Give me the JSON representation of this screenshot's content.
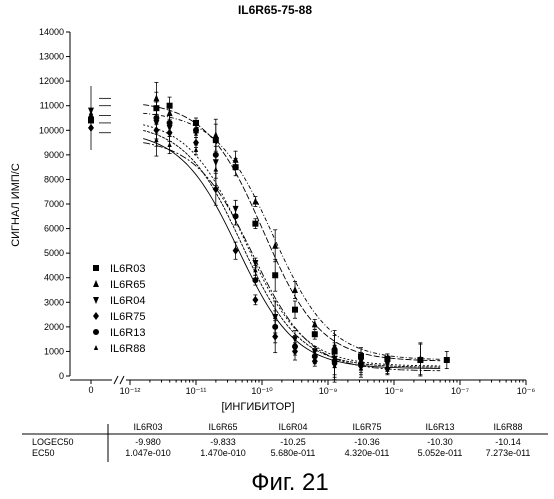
{
  "chart_data": {
    "type": "scatter",
    "title": "IL6R65-75-88",
    "xlabel": "[ИНГИБИТОР]",
    "ylabel": "СИГНАЛ ИМП/С",
    "x_scale": "log",
    "xlim_log10": [
      -12,
      -6
    ],
    "ylim": [
      0,
      14000
    ],
    "y_ticks": [
      "0",
      "1000",
      "2000",
      "3000",
      "4000",
      "5000",
      "6000",
      "7000",
      "8000",
      "9000",
      "10000",
      "11000",
      "12000",
      "13000",
      "14000"
    ],
    "x_zero_label": "0",
    "x_ticks": [
      {
        "exp": -12,
        "label": "10⁻¹²"
      },
      {
        "exp": -11,
        "label": "10⁻¹¹"
      },
      {
        "exp": -10,
        "label": "10⁻¹⁰"
      },
      {
        "exp": -9,
        "label": "10⁻⁹"
      },
      {
        "exp": -8,
        "label": "10⁻⁸"
      },
      {
        "exp": -7,
        "label": "10⁻⁷"
      },
      {
        "exp": -6,
        "label": "10⁻⁶"
      }
    ],
    "grid": false,
    "legend_position": "bottom-left",
    "zero_dose_values": [
      10400,
      10600,
      10800,
      10100,
      10500,
      10700
    ],
    "series": [
      {
        "name": "IL6R03",
        "marker": "square",
        "top": 11200,
        "bottom": 600,
        "logec50": -9.98,
        "points": [
          [
            -11.6,
            10900
          ],
          [
            -11.4,
            11000
          ],
          [
            -11.0,
            10300
          ],
          [
            -10.7,
            9600
          ],
          [
            -10.4,
            8500
          ],
          [
            -10.1,
            6200
          ],
          [
            -9.8,
            4100
          ],
          [
            -9.5,
            2700
          ],
          [
            -9.2,
            1700
          ],
          [
            -8.9,
            1000
          ],
          [
            -8.5,
            800
          ],
          [
            -8.1,
            700
          ],
          [
            -7.6,
            650
          ],
          [
            -7.2,
            650
          ]
        ]
      },
      {
        "name": "IL6R65",
        "marker": "triangle",
        "top": 10800,
        "bottom": 650,
        "logec50": -9.833,
        "points": [
          [
            -11.6,
            11300
          ],
          [
            -11.4,
            10700
          ],
          [
            -11.0,
            10000
          ],
          [
            -10.7,
            9800
          ],
          [
            -10.4,
            8800
          ],
          [
            -10.1,
            7100
          ],
          [
            -9.8,
            5300
          ],
          [
            -9.5,
            3500
          ],
          [
            -9.2,
            2100
          ],
          [
            -8.9,
            1200
          ],
          [
            -8.5,
            800
          ],
          [
            -8.1,
            700
          ],
          [
            -7.6,
            700
          ]
        ]
      },
      {
        "name": "IL6R04",
        "marker": "tri-down",
        "top": 10500,
        "bottom": 400,
        "logec50": -10.25,
        "points": [
          [
            -11.6,
            10300
          ],
          [
            -11.4,
            10100
          ],
          [
            -11.0,
            9900
          ],
          [
            -10.7,
            8700
          ],
          [
            -10.4,
            6800
          ],
          [
            -10.1,
            4600
          ],
          [
            -9.8,
            2400
          ],
          [
            -9.5,
            1500
          ],
          [
            -9.2,
            1000
          ],
          [
            -8.9,
            700
          ],
          [
            -8.5,
            600
          ],
          [
            -8.1,
            500
          ]
        ]
      },
      {
        "name": "IL6R75",
        "marker": "diamond",
        "top": 10000,
        "bottom": 300,
        "logec50": -10.36,
        "points": [
          [
            -11.6,
            10000
          ],
          [
            -11.4,
            9900
          ],
          [
            -11.0,
            9500
          ],
          [
            -10.7,
            7600
          ],
          [
            -10.4,
            5100
          ],
          [
            -10.1,
            3100
          ],
          [
            -9.8,
            1600
          ],
          [
            -9.5,
            1000
          ],
          [
            -9.2,
            600
          ],
          [
            -8.9,
            500
          ],
          [
            -8.5,
            400
          ],
          [
            -8.1,
            300
          ]
        ]
      },
      {
        "name": "IL6R13",
        "marker": "circle",
        "top": 10300,
        "bottom": 350,
        "logec50": -10.3,
        "points": [
          [
            -11.6,
            10500
          ],
          [
            -11.4,
            10300
          ],
          [
            -11.0,
            10000
          ],
          [
            -10.7,
            9000
          ],
          [
            -10.4,
            6500
          ],
          [
            -10.1,
            3900
          ],
          [
            -9.8,
            2000
          ],
          [
            -9.5,
            1200
          ],
          [
            -9.2,
            800
          ],
          [
            -8.9,
            600
          ],
          [
            -8.5,
            500
          ]
        ]
      },
      {
        "name": "IL6R88",
        "marker": "triangle-small",
        "top": 9700,
        "bottom": 200,
        "logec50": -10.14,
        "points": [
          [
            -11.6,
            9600
          ],
          [
            -11.4,
            9400
          ],
          [
            -11.0,
            9200
          ],
          [
            -10.7,
            8400
          ],
          [
            -10.4,
            6500
          ],
          [
            -10.1,
            4300
          ],
          [
            -9.8,
            2400
          ],
          [
            -9.5,
            1300
          ],
          [
            -9.2,
            700
          ],
          [
            -8.9,
            400
          ],
          [
            -8.5,
            300
          ],
          [
            -8.1,
            250
          ]
        ]
      }
    ],
    "table": {
      "header": [
        "",
        "IL6R03",
        "IL6R65",
        "IL6R04",
        "IL6R75",
        "IL6R13",
        "IL6R88"
      ],
      "rows": [
        [
          "LOGEC50",
          "-9.980",
          "-9.833",
          "-10.25",
          "-10.36",
          "-10.30",
          "-10.14"
        ],
        [
          "EC50",
          "1.047e-010",
          "1.470e-010",
          "5.680e-011",
          "4.320e-011",
          "5.052e-011",
          "7.273e-011"
        ]
      ]
    },
    "caption": "Фиг. 21"
  }
}
